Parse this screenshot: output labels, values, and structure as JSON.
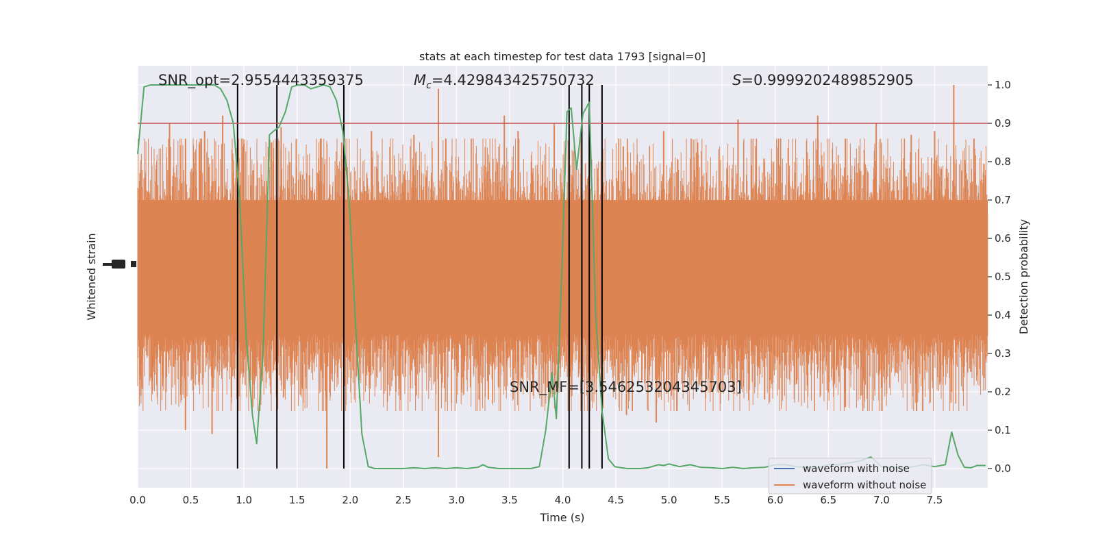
{
  "chart_data": {
    "type": "line",
    "title": "stats at each timestep for test data 1793 [signal=0]",
    "xlabel": "Time (s)",
    "ylabel_left": "Whitened strain",
    "ylabel_right": "Detection probability",
    "xlim": [
      0.0,
      8.0
    ],
    "ylim_right": [
      -0.05,
      1.05
    ],
    "x_ticks": [
      "0.0",
      "0.5",
      "1.0",
      "1.5",
      "2.0",
      "2.5",
      "3.0",
      "3.5",
      "4.0",
      "4.5",
      "5.0",
      "5.5",
      "6.0",
      "6.5",
      "7.0",
      "7.5"
    ],
    "y_ticks_right": [
      "0.0",
      "0.1",
      "0.2",
      "0.3",
      "0.4",
      "0.5",
      "0.6",
      "0.7",
      "0.8",
      "0.9",
      "1.0"
    ],
    "annotations": {
      "snr_opt": "SNR_opt=2.9554443359375",
      "mc_symbol": "M",
      "mc_sub": "c",
      "mc_value": "=4.429843425750732",
      "s_symbol": "S",
      "s_value": "=0.9999202489852905",
      "snr_mf": "SNR_MF=[3.546253204345703]"
    },
    "threshold": 0.9,
    "trigger_times": [
      0.94,
      1.31,
      1.94,
      4.06,
      4.18,
      4.25,
      4.37
    ],
    "detection_probability": {
      "x": [
        0.0,
        0.06,
        0.12,
        0.18,
        0.24,
        0.3,
        0.36,
        0.42,
        0.48,
        0.54,
        0.6,
        0.66,
        0.72,
        0.78,
        0.84,
        0.9,
        0.96,
        1.02,
        1.08,
        1.12,
        1.18,
        1.24,
        1.28,
        1.33,
        1.39,
        1.45,
        1.51,
        1.57,
        1.63,
        1.69,
        1.75,
        1.81,
        1.87,
        1.93,
        1.99,
        2.05,
        2.11,
        2.17,
        2.23,
        2.29,
        2.35,
        2.41,
        2.5,
        2.6,
        2.7,
        2.8,
        2.9,
        3.0,
        3.1,
        3.2,
        3.25,
        3.3,
        3.4,
        3.5,
        3.6,
        3.7,
        3.78,
        3.84,
        3.9,
        3.94,
        3.99,
        4.04,
        4.08,
        4.13,
        4.19,
        4.25,
        4.31,
        4.37,
        4.43,
        4.49,
        4.55,
        4.61,
        4.67,
        4.73,
        4.8,
        4.9,
        4.95,
        5.0,
        5.1,
        5.2,
        5.3,
        5.4,
        5.5,
        5.6,
        5.7,
        5.8,
        5.9,
        6.0,
        6.1,
        6.2,
        6.3,
        6.4,
        6.5,
        6.6,
        6.7,
        6.8,
        6.9,
        7.0,
        7.1,
        7.2,
        7.3,
        7.4,
        7.5,
        7.6,
        7.66,
        7.72,
        7.78,
        7.84,
        7.9,
        7.98
      ],
      "y": [
        0.82,
        0.995,
        1.0,
        1.0,
        1.0,
        1.0,
        1.0,
        1.0,
        1.0,
        1.0,
        1.0,
        1.0,
        1.0,
        0.99,
        0.96,
        0.9,
        0.7,
        0.35,
        0.14,
        0.065,
        0.3,
        0.87,
        0.88,
        0.89,
        0.93,
        0.995,
        1.0,
        1.0,
        0.99,
        0.995,
        1.0,
        0.995,
        0.96,
        0.88,
        0.7,
        0.38,
        0.09,
        0.005,
        0.0,
        0.0,
        0.0,
        0.0,
        0.0,
        0.002,
        0.0,
        0.002,
        0.0,
        0.002,
        0.0,
        0.003,
        0.01,
        0.003,
        0.0,
        0.0,
        0.0,
        0.0,
        0.005,
        0.1,
        0.25,
        0.13,
        0.5,
        0.93,
        0.94,
        0.78,
        0.925,
        0.955,
        0.4,
        0.15,
        0.025,
        0.005,
        0.002,
        0.0,
        0.0,
        0.0,
        0.002,
        0.01,
        0.008,
        0.012,
        0.005,
        0.01,
        0.003,
        0.002,
        0.0,
        0.003,
        0.0,
        0.002,
        0.003,
        0.01,
        0.01,
        0.005,
        0.003,
        0.002,
        0.01,
        0.01,
        0.015,
        0.02,
        0.03,
        0.005,
        0.003,
        0.002,
        0.005,
        0.01,
        0.005,
        0.01,
        0.095,
        0.035,
        0.003,
        0.002,
        0.008,
        0.008
      ]
    },
    "strain_without_noise_spikes": {
      "x": [
        0.03,
        0.3,
        0.45,
        0.63,
        0.8,
        1.26,
        1.35,
        1.72,
        1.92,
        2.2,
        2.6,
        2.83,
        2.9,
        3.45,
        3.58,
        3.92,
        4.25,
        4.57,
        4.95,
        5.27,
        5.65,
        6.03,
        6.4,
        6.66,
        6.95,
        7.28,
        7.5,
        7.68,
        7.87
      ],
      "y": [
        0.78,
        0.9,
        0.86,
        0.88,
        0.92,
        0.85,
        0.89,
        0.86,
        0.85,
        0.88,
        0.87,
        0.99,
        0.86,
        0.92,
        0.88,
        0.9,
        0.87,
        0.84,
        0.88,
        0.85,
        0.91,
        0.86,
        0.92,
        0.86,
        0.9,
        0.87,
        0.88,
        1.0,
        0.86
      ]
    },
    "strain_without_noise_dips": {
      "x": [
        0.03,
        0.45,
        0.7,
        1.78,
        2.43,
        2.83,
        3.3,
        3.72,
        4.6,
        4.88,
        5.4,
        5.9,
        6.2,
        6.66,
        7.0,
        7.33,
        7.66
      ],
      "y": [
        0.19,
        0.1,
        0.09,
        0.0,
        0.2,
        0.03,
        0.18,
        0.21,
        0.14,
        0.12,
        0.2,
        0.18,
        0.22,
        0.16,
        0.21,
        0.15,
        0.2
      ]
    },
    "legend": {
      "position": "lower-right",
      "entries": [
        {
          "label": "waveform with noise",
          "color": "#4c72b0"
        },
        {
          "label": "waveform without noise",
          "color": "#dd8452"
        }
      ]
    },
    "colors": {
      "background": "#eaeaf2",
      "grid": "#ffffff",
      "strain": "#dd8452",
      "probability": "#55a868",
      "threshold": "#c44e52",
      "trigger": "#000000"
    }
  }
}
